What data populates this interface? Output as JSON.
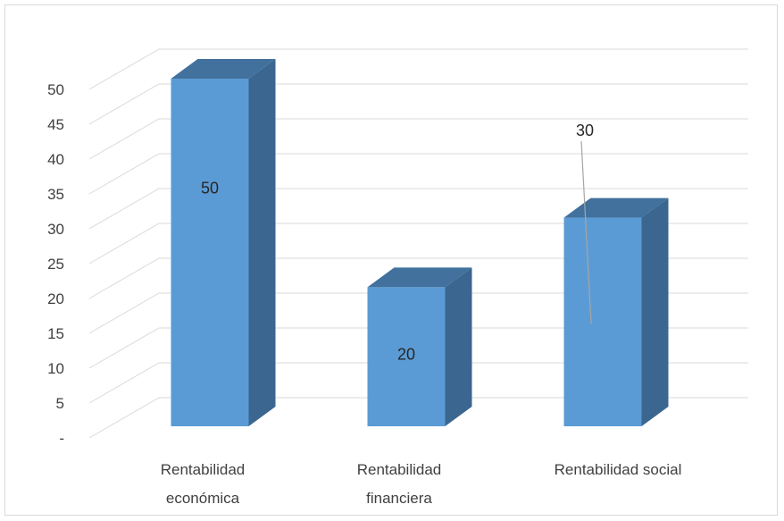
{
  "chart_data": {
    "type": "bar",
    "style": "3d-column",
    "categories": [
      "Rentabilidad económica",
      "Rentabilidad financiera",
      "Rentabilidad social"
    ],
    "category_lines": [
      [
        "Rentabilidad",
        "económica"
      ],
      [
        "Rentabilidad",
        "financiera"
      ],
      [
        "Rentabilidad social"
      ]
    ],
    "values": [
      50,
      20,
      30
    ],
    "data_labels": [
      "50",
      "20",
      "30"
    ],
    "yticks": [
      "-",
      "5",
      "10",
      "15",
      "20",
      "25",
      "30",
      "35",
      "40",
      "45",
      "50"
    ],
    "ylim": [
      0,
      50
    ],
    "grid": true,
    "legend": "none",
    "colors": {
      "front": "#5b9bd5",
      "top": "#41719c",
      "side": "#3a6690",
      "grid": "#d9d9d9",
      "text": "#404040",
      "leader": "#a6a6a6"
    }
  }
}
